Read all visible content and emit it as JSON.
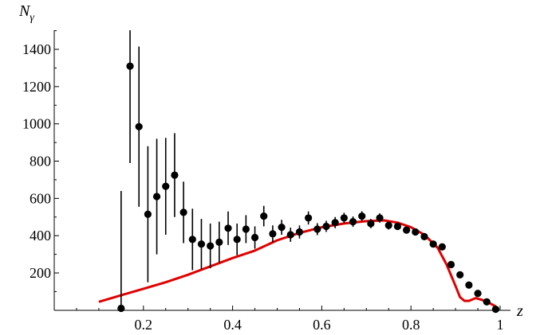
{
  "chart_data": {
    "type": "scatter",
    "xlabel": "z",
    "ylabel": "N",
    "ylabel_subscript": "γ",
    "xlim": [
      0.0,
      1.0
    ],
    "ylim": [
      0,
      1500
    ],
    "x_ticks": [
      0.2,
      0.4,
      0.6,
      0.8,
      1.0
    ],
    "x_tick_labels": [
      "0.2",
      "0.4",
      "0.6",
      "0.8",
      "1"
    ],
    "y_ticks": [
      200,
      400,
      600,
      800,
      1000,
      1200,
      1400
    ],
    "y_tick_labels": [
      "200",
      "400",
      "600",
      "800",
      "1000",
      "1200",
      "1400"
    ],
    "grid": false,
    "series": [
      {
        "kind": "points_with_error_bars",
        "color": "#000000",
        "x": [
          0.15,
          0.17,
          0.19,
          0.21,
          0.23,
          0.25,
          0.27,
          0.29,
          0.31,
          0.33,
          0.35,
          0.37,
          0.39,
          0.41,
          0.43,
          0.45,
          0.47,
          0.49,
          0.51,
          0.53,
          0.55,
          0.57,
          0.59,
          0.61,
          0.63,
          0.65,
          0.67,
          0.69,
          0.71,
          0.73,
          0.75,
          0.77,
          0.79,
          0.81,
          0.83,
          0.85,
          0.87,
          0.89,
          0.91,
          0.93,
          0.95,
          0.97,
          0.99
        ],
        "y": [
          10,
          1310,
          985,
          515,
          610,
          665,
          725,
          525,
          380,
          355,
          345,
          365,
          440,
          380,
          435,
          390,
          505,
          410,
          445,
          405,
          420,
          495,
          435,
          450,
          470,
          495,
          475,
          505,
          465,
          495,
          455,
          450,
          430,
          420,
          395,
          355,
          340,
          245,
          190,
          135,
          90,
          45,
          5
        ],
        "y_err": [
          630,
          520,
          430,
          365,
          310,
          260,
          225,
          165,
          165,
          135,
          120,
          110,
          90,
          85,
          75,
          60,
          55,
          45,
          40,
          38,
          35,
          35,
          32,
          30,
          30,
          28,
          28,
          26,
          25,
          25,
          22,
          20,
          18,
          18,
          16,
          16,
          15,
          12,
          10,
          8,
          6,
          5,
          4
        ]
      },
      {
        "kind": "line",
        "color": "#e00000",
        "x": [
          0.1,
          0.15,
          0.2,
          0.25,
          0.3,
          0.35,
          0.4,
          0.45,
          0.5,
          0.55,
          0.6,
          0.65,
          0.7,
          0.74,
          0.77,
          0.8,
          0.83,
          0.86,
          0.88,
          0.9,
          0.91,
          0.92,
          0.93,
          0.945,
          0.96,
          0.975,
          0.99
        ],
        "y": [
          45,
          80,
          115,
          150,
          190,
          235,
          280,
          320,
          375,
          415,
          445,
          465,
          478,
          482,
          470,
          445,
          405,
          335,
          245,
          130,
          70,
          50,
          50,
          65,
          55,
          40,
          20
        ]
      }
    ]
  }
}
